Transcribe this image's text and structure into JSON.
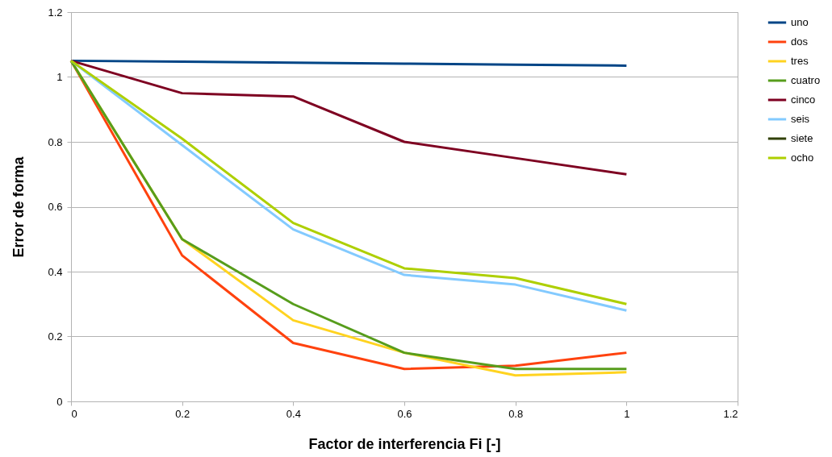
{
  "chart_data": {
    "type": "line",
    "xlabel": "Factor de interferencia Fi [-]",
    "ylabel": "Error de forma",
    "x": [
      0,
      0.2,
      0.4,
      0.6,
      0.8,
      1
    ],
    "series": [
      {
        "name": "uno",
        "color": "#004586",
        "values": [
          1.05,
          1.047,
          1.044,
          1.041,
          1.038,
          1.035
        ]
      },
      {
        "name": "dos",
        "color": "#ff420e",
        "values": [
          1.05,
          0.45,
          0.18,
          0.1,
          0.11,
          0.15
        ]
      },
      {
        "name": "tres",
        "color": "#ffd320",
        "values": [
          1.05,
          0.5,
          0.25,
          0.15,
          0.08,
          0.09
        ]
      },
      {
        "name": "cuatro",
        "color": "#579d1c",
        "values": [
          1.05,
          0.5,
          0.3,
          0.15,
          0.1,
          0.1
        ]
      },
      {
        "name": "cinco",
        "color": "#7e0021",
        "values": [
          1.05,
          0.95,
          0.94,
          0.8,
          0.75,
          0.7
        ]
      },
      {
        "name": "seis",
        "color": "#83caff",
        "values": [
          1.05,
          0.79,
          0.53,
          0.39,
          0.36,
          0.28
        ]
      },
      {
        "name": "siete",
        "color": "#314004",
        "values": [
          null,
          null,
          null,
          null,
          null,
          null
        ]
      },
      {
        "name": "ocho",
        "color": "#aecf00",
        "values": [
          1.05,
          0.81,
          0.55,
          0.41,
          0.38,
          0.3
        ]
      }
    ],
    "xlim": [
      0,
      1.2
    ],
    "xticks": [
      0,
      0.2,
      0.4,
      0.6,
      0.8,
      1,
      1.2
    ],
    "ylim": [
      0,
      1.2
    ],
    "yticks": [
      0,
      0.2,
      0.4,
      0.6,
      0.8,
      1,
      1.2
    ],
    "grid": "y",
    "legend": "right",
    "line_style": "solid"
  }
}
